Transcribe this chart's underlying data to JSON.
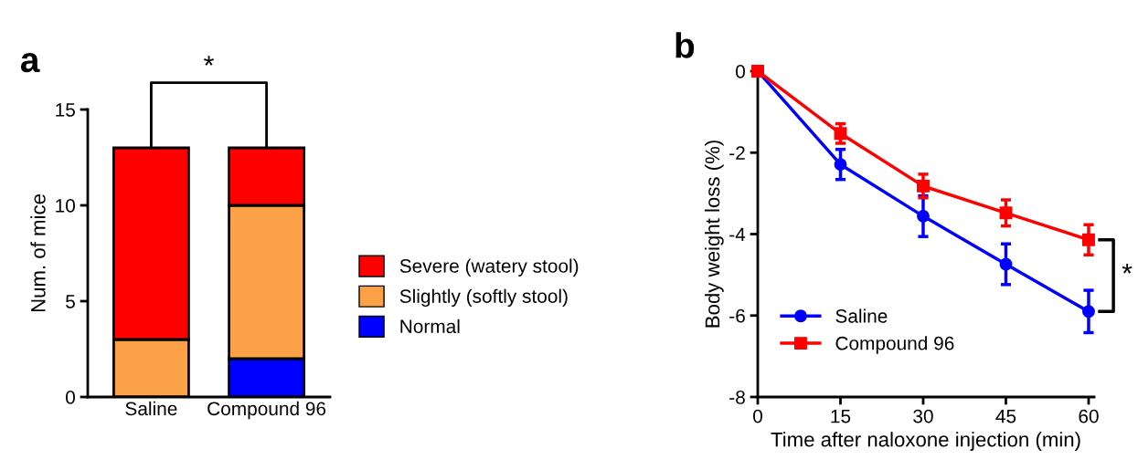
{
  "chart_data": [
    {
      "type": "bar",
      "title": "a",
      "ylabel": "Num. of mice",
      "categories": [
        "Saline",
        "Compound 96"
      ],
      "stacked": true,
      "ylim": [
        0,
        15
      ],
      "yticks": [
        0,
        5,
        10,
        15
      ],
      "legend": "right",
      "grid": false,
      "series": [
        {
          "name": "Normal",
          "color": "#0000ff",
          "values": [
            0,
            2
          ]
        },
        {
          "name": "Slightly (softly stool)",
          "color": "#fba147",
          "values": [
            3,
            8
          ]
        },
        {
          "name": "Severe (watery stool)",
          "color": "#ff0000",
          "values": [
            10,
            3
          ]
        }
      ],
      "annotations": [
        "*"
      ]
    },
    {
      "type": "line",
      "title": "b",
      "xlabel": "Time after naloxone injection (min)",
      "ylabel": "Body weight loss (%)",
      "x": [
        0,
        15,
        30,
        45,
        60
      ],
      "xlim": [
        0,
        61
      ],
      "xticks": [
        0,
        15,
        30,
        45,
        60
      ],
      "ylim": [
        -8,
        0
      ],
      "yticks": [
        {
          "value": 0,
          "label": "0"
        },
        {
          "value": -2,
          "label": "-2"
        },
        {
          "value": -4,
          "label": "-4"
        },
        {
          "value": -6,
          "label": "-6"
        },
        {
          "value": -8,
          "label": "-8"
        }
      ],
      "legend": "bottom left",
      "grid": false,
      "series": [
        {
          "name": "Saline",
          "color": "#0000ff",
          "marker": "circle",
          "values": [
            0,
            -2.29,
            -3.56,
            -4.74,
            -5.9
          ],
          "errors": [
            null,
            0.37,
            0.5,
            0.5,
            0.52
          ]
        },
        {
          "name": "Compound 96",
          "color": "#ff0000",
          "marker": "square",
          "values": [
            0,
            -1.53,
            -2.82,
            -3.48,
            -4.14
          ],
          "errors": [
            null,
            0.24,
            0.29,
            0.32,
            0.37
          ]
        }
      ],
      "annotations": [
        "*"
      ]
    }
  ]
}
